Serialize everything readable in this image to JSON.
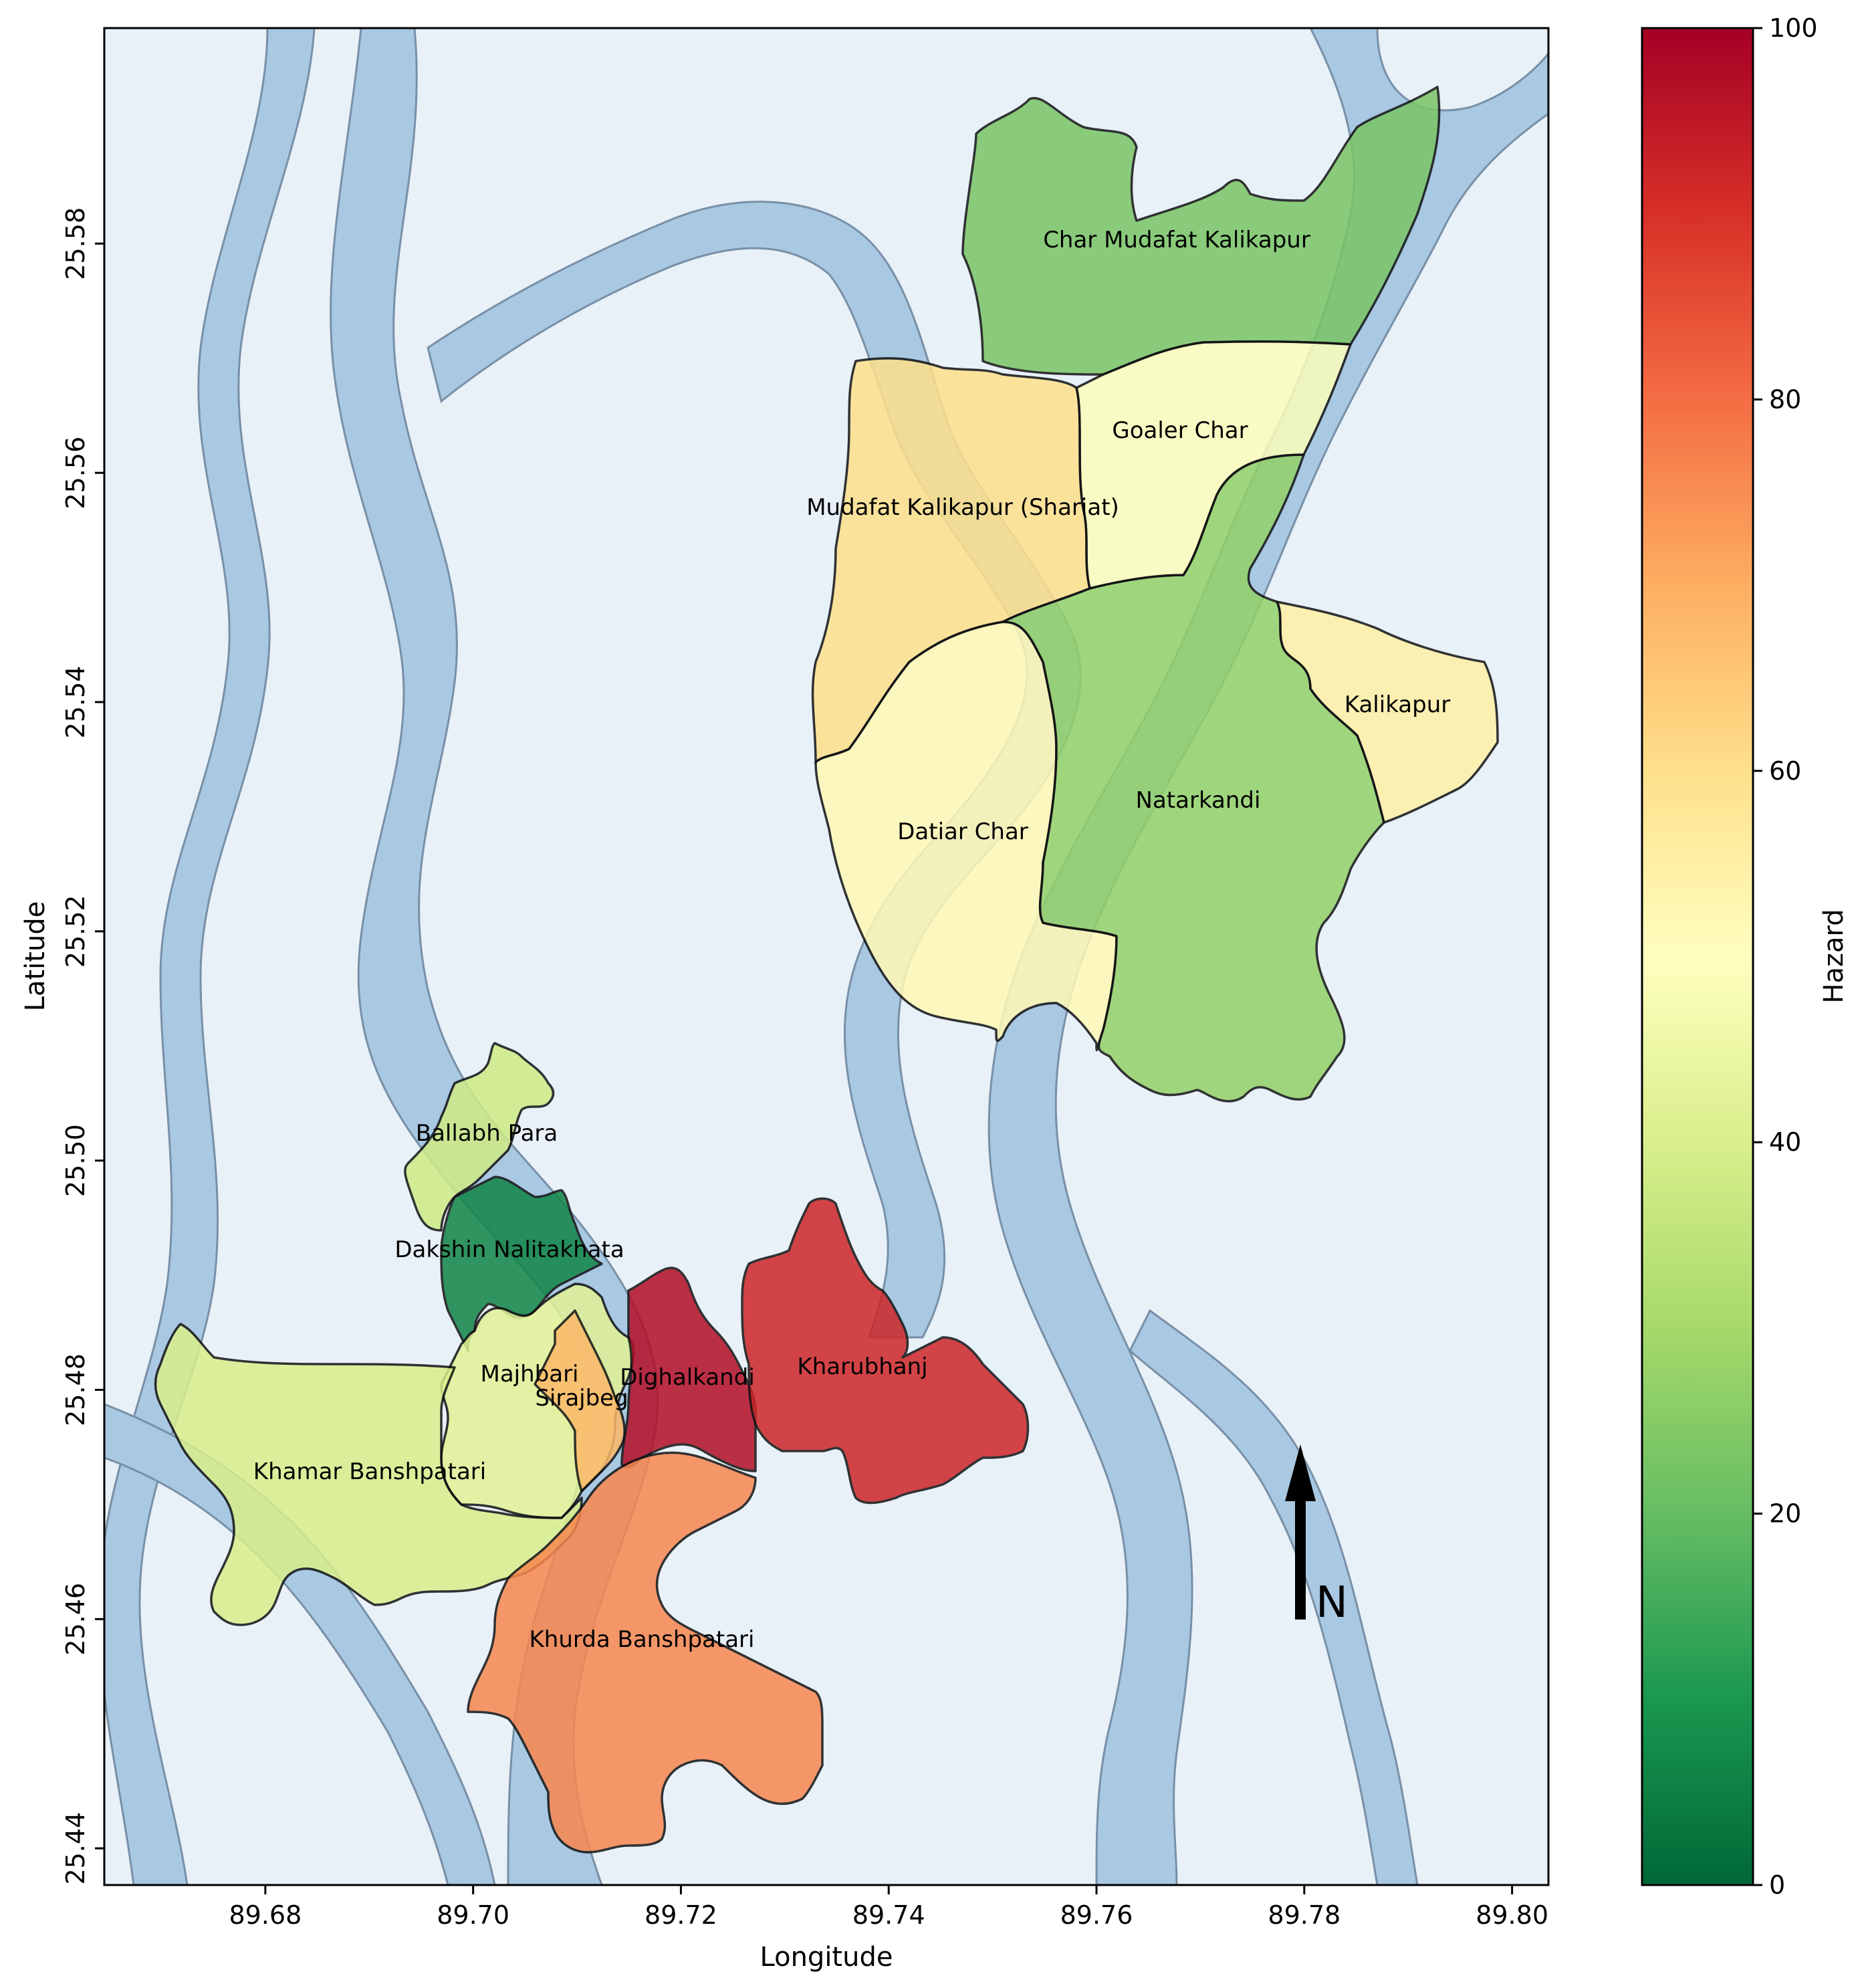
{
  "map": {
    "xlabel": "Longitude",
    "ylabel": "Latitude",
    "xlim": [
      89.6645,
      89.8035
    ],
    "ylim": [
      25.4368,
      25.5988
    ],
    "x_ticks": [
      "89.68",
      "89.70",
      "89.72",
      "89.74",
      "89.76",
      "89.78",
      "89.80"
    ],
    "x_tick_values": [
      89.68,
      89.7,
      89.72,
      89.74,
      89.76,
      89.78,
      89.8
    ],
    "y_ticks": [
      "25.44",
      "25.46",
      "25.48",
      "25.50",
      "25.52",
      "25.54",
      "25.56",
      "25.58"
    ],
    "y_tick_values": [
      25.44,
      25.46,
      25.48,
      25.5,
      25.52,
      25.54,
      25.56,
      25.58
    ],
    "north_arrow": {
      "label": "N"
    },
    "colors": {
      "river": "#a9c8e2",
      "floodplain": "#e8f0f8",
      "border": "#111111"
    }
  },
  "colorbar": {
    "label": "Hazard",
    "colormap": "RdYlGn_r",
    "min": 0,
    "max": 100,
    "ticks": [
      "0",
      "20",
      "40",
      "60",
      "80",
      "100"
    ],
    "tick_values": [
      0,
      20,
      40,
      60,
      80,
      100
    ]
  },
  "regions": [
    {
      "name": "Char Mudafat Kalikapur",
      "hazard": 23
    },
    {
      "name": "Goaler Char",
      "hazard": 49
    },
    {
      "name": "Mudafat Kalikapur (Shariat)",
      "hazard": 60
    },
    {
      "name": "Datiar Char",
      "hazard": 52
    },
    {
      "name": "Natarkandi",
      "hazard": 27
    },
    {
      "name": "Kalikapur",
      "hazard": 55
    },
    {
      "name": "Ballabh Para",
      "hazard": 38
    },
    {
      "name": "Dakshin Nalitakhata",
      "hazard": 6
    },
    {
      "name": "Majhbari",
      "hazard": 42
    },
    {
      "name": "Sirajbeg",
      "hazard": 68
    },
    {
      "name": "Dighalkandi",
      "hazard": 97
    },
    {
      "name": "Kharubhanj",
      "hazard": 92
    },
    {
      "name": "Khamar Banshpatari",
      "hazard": 40
    },
    {
      "name": "Khurda Banshpatari",
      "hazard": 76
    }
  ]
}
